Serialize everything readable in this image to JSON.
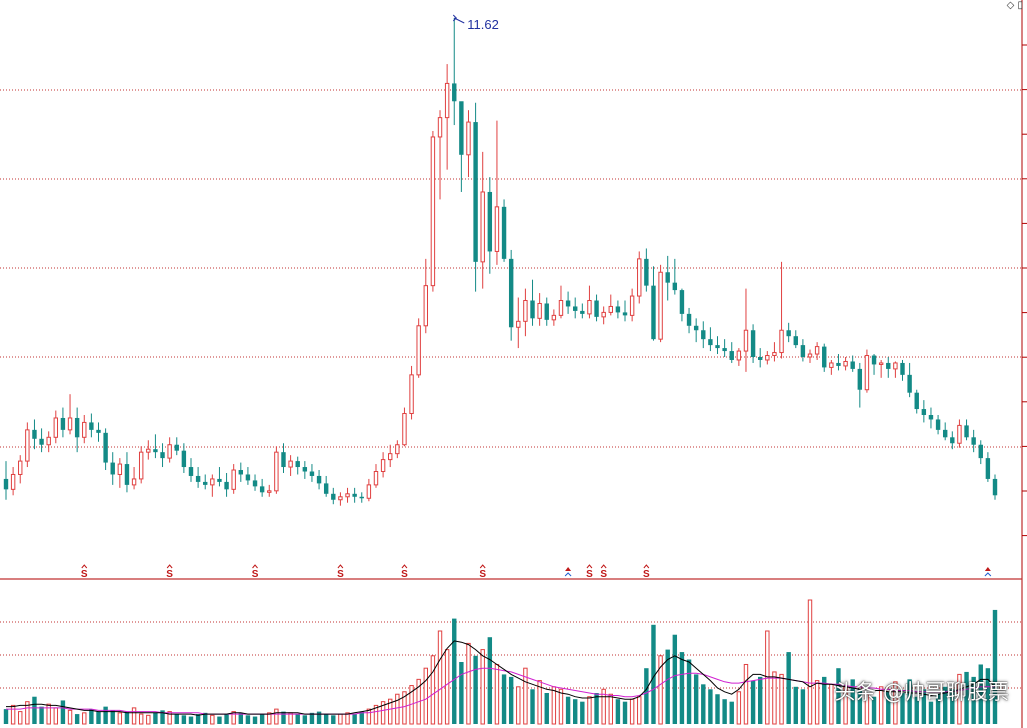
{
  "chart_data": {
    "type": "candlestick",
    "peak_label": "11.62",
    "grid": "dotted horizontal",
    "colors": {
      "up": "#e04040",
      "down": "#138a86",
      "grid": "#c03030",
      "divider": "#c03030",
      "ma_short": "#000000",
      "ma_long": "#d020d0",
      "signal_s": "#c01818",
      "signal_arrow_up": "#c01818",
      "signal_arrow_down": "#2060d0",
      "peak_label": "#2030a0"
    },
    "candles": [
      [
        8.52,
        8.64,
        8.38,
        8.45
      ],
      [
        8.45,
        8.6,
        8.41,
        8.55
      ],
      [
        8.55,
        8.68,
        8.49,
        8.64
      ],
      [
        8.64,
        8.9,
        8.6,
        8.85
      ],
      [
        8.85,
        8.92,
        8.72,
        8.79
      ],
      [
        8.79,
        8.86,
        8.7,
        8.75
      ],
      [
        8.75,
        8.84,
        8.7,
        8.8
      ],
      [
        8.8,
        8.98,
        8.76,
        8.93
      ],
      [
        8.93,
        9.0,
        8.8,
        8.85
      ],
      [
        8.85,
        9.09,
        8.82,
        8.93
      ],
      [
        8.93,
        9.0,
        8.7,
        8.8
      ],
      [
        8.8,
        8.95,
        8.76,
        8.9
      ],
      [
        8.9,
        8.96,
        8.8,
        8.85
      ],
      [
        8.85,
        8.9,
        8.77,
        8.83
      ],
      [
        8.83,
        8.86,
        8.58,
        8.63
      ],
      [
        8.63,
        8.7,
        8.48,
        8.55
      ],
      [
        8.55,
        8.66,
        8.46,
        8.62
      ],
      [
        8.62,
        8.7,
        8.43,
        8.48
      ],
      [
        8.48,
        8.6,
        8.45,
        8.52
      ],
      [
        8.52,
        8.74,
        8.49,
        8.7
      ],
      [
        8.7,
        8.78,
        8.65,
        8.72
      ],
      [
        8.72,
        8.82,
        8.66,
        8.7
      ],
      [
        8.7,
        8.76,
        8.6,
        8.66
      ],
      [
        8.66,
        8.8,
        8.63,
        8.75
      ],
      [
        8.75,
        8.8,
        8.68,
        8.71
      ],
      [
        8.71,
        8.76,
        8.56,
        8.6
      ],
      [
        8.6,
        8.66,
        8.5,
        8.54
      ],
      [
        8.54,
        8.6,
        8.46,
        8.5
      ],
      [
        8.5,
        8.55,
        8.45,
        8.48
      ],
      [
        8.48,
        8.55,
        8.4,
        8.52
      ],
      [
        8.52,
        8.6,
        8.47,
        8.5
      ],
      [
        8.5,
        8.56,
        8.4,
        8.45
      ],
      [
        8.45,
        8.62,
        8.42,
        8.58
      ],
      [
        8.58,
        8.63,
        8.5,
        8.55
      ],
      [
        8.55,
        8.6,
        8.48,
        8.51
      ],
      [
        8.51,
        8.55,
        8.44,
        8.47
      ],
      [
        8.47,
        8.52,
        8.4,
        8.43
      ],
      [
        8.43,
        8.48,
        8.4,
        8.44
      ],
      [
        8.44,
        8.74,
        8.42,
        8.7
      ],
      [
        8.7,
        8.76,
        8.56,
        8.6
      ],
      [
        8.6,
        8.68,
        8.54,
        8.64
      ],
      [
        8.64,
        8.67,
        8.55,
        8.6
      ],
      [
        8.6,
        8.64,
        8.52,
        8.57
      ],
      [
        8.57,
        8.62,
        8.5,
        8.54
      ],
      [
        8.54,
        8.58,
        8.45,
        8.49
      ],
      [
        8.49,
        8.54,
        8.4,
        8.42
      ],
      [
        8.42,
        8.46,
        8.35,
        8.38
      ],
      [
        8.38,
        8.43,
        8.34,
        8.4
      ],
      [
        8.4,
        8.46,
        8.36,
        8.42
      ],
      [
        8.42,
        8.46,
        8.36,
        8.4
      ],
      [
        8.4,
        8.43,
        8.36,
        8.39
      ],
      [
        8.39,
        8.52,
        8.37,
        8.48
      ],
      [
        8.48,
        8.62,
        8.46,
        8.57
      ],
      [
        8.57,
        8.7,
        8.53,
        8.65
      ],
      [
        8.65,
        8.75,
        8.6,
        8.69
      ],
      [
        8.69,
        8.78,
        8.66,
        8.75
      ],
      [
        8.75,
        9.0,
        8.74,
        8.96
      ],
      [
        8.96,
        9.28,
        8.92,
        9.22
      ],
      [
        9.22,
        9.6,
        9.2,
        9.55
      ],
      [
        9.55,
        10.0,
        9.5,
        9.82
      ],
      [
        9.82,
        10.86,
        9.78,
        10.82
      ],
      [
        10.82,
        11.0,
        10.4,
        10.95
      ],
      [
        10.95,
        11.31,
        10.6,
        11.18
      ],
      [
        11.18,
        11.62,
        10.9,
        11.06
      ],
      [
        11.06,
        11.05,
        10.45,
        10.7
      ],
      [
        10.7,
        11.0,
        10.55,
        10.92
      ],
      [
        10.92,
        11.05,
        9.78,
        9.98
      ],
      [
        9.98,
        10.72,
        9.8,
        10.45
      ],
      [
        10.45,
        10.55,
        9.9,
        10.05
      ],
      [
        10.05,
        10.93,
        9.96,
        10.35
      ],
      [
        10.35,
        10.4,
        9.98,
        10.0
      ],
      [
        10.0,
        10.06,
        9.45,
        9.54
      ],
      [
        9.54,
        9.74,
        9.4,
        9.58
      ],
      [
        9.58,
        9.8,
        9.48,
        9.72
      ],
      [
        9.72,
        9.86,
        9.55,
        9.6
      ],
      [
        9.6,
        9.77,
        9.55,
        9.7
      ],
      [
        9.7,
        9.74,
        9.55,
        9.59
      ],
      [
        9.59,
        9.66,
        9.55,
        9.62
      ],
      [
        9.62,
        9.82,
        9.6,
        9.72
      ],
      [
        9.72,
        9.78,
        9.63,
        9.68
      ],
      [
        9.68,
        9.74,
        9.6,
        9.65
      ],
      [
        9.65,
        9.7,
        9.6,
        9.63
      ],
      [
        9.63,
        9.82,
        9.6,
        9.72
      ],
      [
        9.72,
        9.76,
        9.58,
        9.61
      ],
      [
        9.61,
        9.68,
        9.56,
        9.64
      ],
      [
        9.64,
        9.76,
        9.62,
        9.68
      ],
      [
        9.68,
        9.72,
        9.6,
        9.64
      ],
      [
        9.64,
        9.72,
        9.58,
        9.62
      ],
      [
        9.62,
        9.8,
        9.58,
        9.75
      ],
      [
        9.75,
        10.05,
        9.7,
        10.0
      ],
      [
        10.0,
        10.07,
        9.78,
        9.82
      ],
      [
        9.82,
        9.95,
        9.45,
        9.46
      ],
      [
        9.46,
        9.96,
        9.44,
        9.91
      ],
      [
        9.91,
        10.02,
        9.72,
        9.84
      ],
      [
        9.84,
        10.0,
        9.76,
        9.79
      ],
      [
        9.79,
        9.8,
        9.58,
        9.63
      ],
      [
        9.63,
        9.67,
        9.5,
        9.55
      ],
      [
        9.55,
        9.6,
        9.44,
        9.52
      ],
      [
        9.52,
        9.58,
        9.4,
        9.46
      ],
      [
        9.46,
        9.54,
        9.38,
        9.42
      ],
      [
        9.42,
        9.48,
        9.36,
        9.4
      ],
      [
        9.4,
        9.46,
        9.34,
        9.38
      ],
      [
        9.38,
        9.44,
        9.3,
        9.32
      ],
      [
        9.32,
        9.4,
        9.28,
        9.38
      ],
      [
        9.38,
        9.8,
        9.24,
        9.52
      ],
      [
        9.52,
        9.56,
        9.3,
        9.34
      ],
      [
        9.34,
        9.4,
        9.27,
        9.32
      ],
      [
        9.32,
        9.38,
        9.29,
        9.35
      ],
      [
        9.35,
        9.44,
        9.31,
        9.37
      ],
      [
        9.37,
        9.98,
        9.33,
        9.52
      ],
      [
        9.52,
        9.57,
        9.44,
        9.48
      ],
      [
        9.48,
        9.52,
        9.4,
        9.42
      ],
      [
        9.42,
        9.46,
        9.31,
        9.34
      ],
      [
        9.34,
        9.39,
        9.3,
        9.36
      ],
      [
        9.36,
        9.44,
        9.32,
        9.41
      ],
      [
        9.41,
        9.43,
        9.24,
        9.27
      ],
      [
        9.27,
        9.32,
        9.22,
        9.3
      ],
      [
        9.3,
        9.36,
        9.25,
        9.28
      ],
      [
        9.28,
        9.34,
        9.25,
        9.31
      ],
      [
        9.31,
        9.35,
        9.24,
        9.26
      ],
      [
        9.26,
        9.3,
        9.0,
        9.12
      ],
      [
        9.12,
        9.39,
        9.1,
        9.35
      ],
      [
        9.35,
        9.36,
        9.22,
        9.29
      ],
      [
        9.29,
        9.32,
        9.2,
        9.3
      ],
      [
        9.3,
        9.34,
        9.2,
        9.26
      ],
      [
        9.26,
        9.31,
        9.2,
        9.3
      ],
      [
        9.3,
        9.32,
        9.18,
        9.22
      ],
      [
        9.22,
        9.3,
        9.07,
        9.1
      ],
      [
        9.1,
        9.12,
        8.96,
        8.99
      ],
      [
        8.99,
        9.05,
        8.9,
        8.95
      ],
      [
        8.95,
        9.0,
        8.86,
        8.92
      ],
      [
        8.92,
        8.95,
        8.82,
        8.85
      ],
      [
        8.85,
        8.9,
        8.78,
        8.8
      ],
      [
        8.8,
        8.84,
        8.72,
        8.76
      ],
      [
        8.76,
        8.92,
        8.73,
        8.88
      ],
      [
        8.88,
        8.92,
        8.78,
        8.8
      ],
      [
        8.8,
        8.85,
        8.7,
        8.75
      ],
      [
        8.75,
        8.78,
        8.62,
        8.66
      ],
      [
        8.66,
        8.7,
        8.5,
        8.52
      ],
      [
        8.52,
        8.55,
        8.38,
        8.41
      ]
    ],
    "volume": [
      12,
      15,
      10,
      18,
      22,
      14,
      16,
      13,
      19,
      11,
      8,
      9,
      12,
      10,
      14,
      11,
      9,
      10,
      13,
      8,
      7,
      9,
      11,
      10,
      8,
      7,
      6,
      8,
      9,
      7,
      6,
      8,
      10,
      9,
      7,
      6,
      8,
      9,
      12,
      10,
      9,
      8,
      7,
      9,
      10,
      8,
      7,
      8,
      9,
      8,
      10,
      12,
      15,
      18,
      20,
      24,
      26,
      31,
      36,
      45,
      55,
      75,
      60,
      85,
      50,
      65,
      55,
      60,
      70,
      48,
      40,
      38,
      30,
      45,
      28,
      35,
      25,
      30,
      28,
      22,
      20,
      18,
      22,
      25,
      28,
      24,
      20,
      18,
      20,
      22,
      45,
      80,
      55,
      60,
      72,
      58,
      52,
      40,
      32,
      28,
      24,
      20,
      18,
      26,
      48,
      35,
      38,
      75,
      42,
      40,
      58,
      30,
      28,
      100,
      35,
      38,
      32,
      45,
      30,
      36,
      28,
      24,
      22,
      30,
      26,
      34,
      25,
      36,
      22,
      28,
      18,
      24,
      30,
      28,
      40,
      42,
      38,
      48,
      45,
      92
    ],
    "ma_short": [
      14,
      14,
      15,
      15,
      16,
      16,
      15,
      15,
      14,
      13,
      12,
      11,
      11,
      10,
      10,
      10,
      10,
      9,
      9,
      9,
      9,
      9,
      9,
      8,
      8,
      8,
      8,
      7,
      8,
      8,
      8,
      8,
      9,
      9,
      8,
      8,
      8,
      8,
      9,
      9,
      9,
      9,
      8,
      8,
      8,
      8,
      8,
      8,
      8,
      9,
      10,
      11,
      13,
      15,
      17,
      19,
      22,
      26,
      30,
      35,
      42,
      52,
      61,
      67,
      66,
      64,
      60,
      55,
      52,
      48,
      44,
      40,
      37,
      34,
      32,
      30,
      28,
      27,
      25,
      24,
      22,
      21,
      21,
      22,
      22,
      22,
      21,
      20,
      20,
      22,
      28,
      38,
      46,
      52,
      55,
      52,
      50,
      45,
      40,
      35,
      29,
      26,
      24,
      28,
      35,
      40,
      40,
      38,
      38,
      37,
      36,
      35,
      34,
      30,
      33,
      32,
      32,
      31,
      30,
      29,
      28,
      28,
      27,
      27,
      26,
      26,
      26,
      25,
      25,
      24,
      23,
      24,
      25,
      26,
      28,
      30,
      32,
      36,
      36,
      30
    ],
    "ma_long": [
      12,
      12,
      12,
      13,
      13,
      13,
      13,
      13,
      13,
      12,
      12,
      12,
      12,
      11,
      11,
      11,
      11,
      10,
      10,
      10,
      10,
      10,
      9,
      9,
      9,
      9,
      9,
      9,
      8,
      8,
      8,
      8,
      8,
      8,
      8,
      8,
      8,
      8,
      8,
      8,
      8,
      8,
      8,
      8,
      8,
      8,
      8,
      8,
      8,
      8,
      9,
      9,
      10,
      11,
      12,
      13,
      14,
      16,
      18,
      20,
      24,
      28,
      32,
      36,
      40,
      42,
      44,
      45,
      45,
      44,
      43,
      42,
      40,
      38,
      36,
      34,
      32,
      30,
      29,
      28,
      27,
      26,
      25,
      24,
      24,
      23,
      23,
      22,
      22,
      23,
      25,
      28,
      32,
      36,
      39,
      40,
      41,
      41,
      40,
      38,
      36,
      34,
      33,
      33,
      34,
      35,
      36,
      37,
      37,
      37,
      36,
      35,
      34,
      33,
      33,
      33,
      32,
      32,
      31,
      30,
      30,
      29,
      29,
      28,
      28,
      27,
      27,
      27,
      26,
      26,
      26,
      26,
      26,
      26,
      27,
      28,
      29,
      30,
      30,
      30
    ],
    "signals": [
      {
        "index": 11,
        "label": "S",
        "marker": "up",
        "color": "#c01818"
      },
      {
        "index": 23,
        "label": "S",
        "marker": "up",
        "color": "#c01818"
      },
      {
        "index": 35,
        "label": "S",
        "marker": "up",
        "color": "#c01818"
      },
      {
        "index": 47,
        "label": "S",
        "marker": "up",
        "color": "#c01818"
      },
      {
        "index": 56,
        "label": "S",
        "marker": "up",
        "color": "#c01818"
      },
      {
        "index": 67,
        "label": "S",
        "marker": "up",
        "color": "#c01818"
      },
      {
        "index": 79,
        "label": "",
        "marker": "double",
        "color": "#c01818"
      },
      {
        "index": 82,
        "label": "S",
        "marker": "up",
        "color": "#c01818"
      },
      {
        "index": 84,
        "label": "S",
        "marker": "up",
        "color": "#c01818"
      },
      {
        "index": 90,
        "label": "S",
        "marker": "up",
        "color": "#c01818"
      },
      {
        "index": 138,
        "label": "",
        "marker": "double",
        "color": "#c01818"
      }
    ]
  },
  "watermark": "头条 @帅哥聊股票",
  "icons": {
    "corner": "diamond-icon",
    "corner2": "pane-icon"
  }
}
